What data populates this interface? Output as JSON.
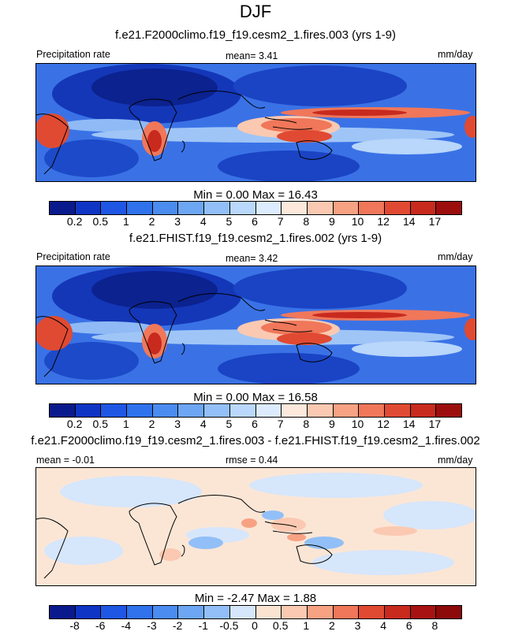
{
  "figure_title": "DJF",
  "panels": [
    {
      "title": "f.e21.F2000climo.f19_f19.cesm2_1.fires.003 (yrs 1-9)",
      "left_label": "Precipitation rate",
      "center_label": "mean=   3.41",
      "right_label": "mm/day",
      "minmax": "Min =    0.00 Max =   16.43",
      "colorbar_ticks": [
        "0.2",
        "0.5",
        "1",
        "2",
        "3",
        "4",
        "5",
        "6",
        "7",
        "8",
        "9",
        "10",
        "12",
        "14",
        "17"
      ],
      "colorbar_colors": [
        "#0a1a8c",
        "#0e35c4",
        "#1f57e4",
        "#2f72ec",
        "#4a8cef",
        "#6da6f3",
        "#92bff7",
        "#b9d8fb",
        "#dcebfd",
        "#fde8dc",
        "#fbc9b1",
        "#f7a283",
        "#f0775a",
        "#e04a32",
        "#c82a1e",
        "#9c0e0e"
      ]
    },
    {
      "title": "f.e21.FHIST.f19_f19.cesm2_1.fires.002 (yrs 1-9)",
      "left_label": "Precipitation rate",
      "center_label": "mean=   3.42",
      "right_label": "mm/day",
      "minmax": "Min =    0.00 Max =   16.58",
      "colorbar_ticks": [
        "0.2",
        "0.5",
        "1",
        "2",
        "3",
        "4",
        "5",
        "6",
        "7",
        "8",
        "9",
        "10",
        "12",
        "14",
        "17"
      ],
      "colorbar_colors": [
        "#0a1a8c",
        "#0e35c4",
        "#1f57e4",
        "#2f72ec",
        "#4a8cef",
        "#6da6f3",
        "#92bff7",
        "#b9d8fb",
        "#dcebfd",
        "#fde8dc",
        "#fbc9b1",
        "#f7a283",
        "#f0775a",
        "#e04a32",
        "#c82a1e",
        "#9c0e0e"
      ]
    },
    {
      "title": "f.e21.F2000climo.f19_f19.cesm2_1.fires.003 - f.e21.FHIST.f19_f19.cesm2_1.fires.002",
      "left_label": "mean =  -0.01",
      "center_label": "rmse =   0.44",
      "right_label": "mm/day",
      "minmax": "Min =  -2.47 Max =   1.88",
      "colorbar_ticks": [
        "-8",
        "-6",
        "-4",
        "-3",
        "-2",
        "-1",
        "-0.5",
        "0",
        "0.5",
        "1",
        "2",
        "3",
        "4",
        "6",
        "8"
      ],
      "colorbar_colors": [
        "#0a1a8c",
        "#0e35c4",
        "#1f57e4",
        "#2f72ec",
        "#4a8cef",
        "#6da6f3",
        "#92bff7",
        "#d6e6fb",
        "#fbe3d2",
        "#fbc9b1",
        "#f7a283",
        "#f0775a",
        "#e04a32",
        "#c82a1e",
        "#a81212",
        "#8c0a0a"
      ]
    }
  ]
}
